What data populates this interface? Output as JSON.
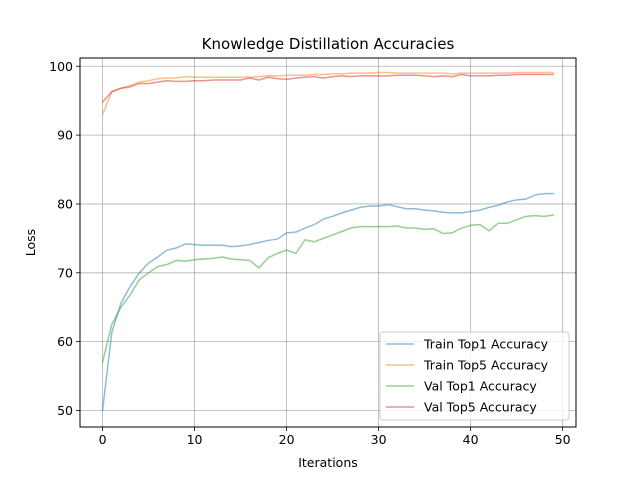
{
  "chart_data": {
    "type": "line",
    "title": "Knowledge Distillation Accuracies",
    "xlabel": "Iterations",
    "ylabel": "Loss",
    "xlim": [
      -2.45,
      51.45
    ],
    "ylim": [
      47.6,
      101.2
    ],
    "xticks": [
      0,
      10,
      20,
      30,
      40,
      50
    ],
    "yticks": [
      50,
      60,
      70,
      80,
      90,
      100
    ],
    "grid": true,
    "legend_position": "lower right",
    "x": [
      0,
      1,
      2,
      3,
      4,
      5,
      6,
      7,
      8,
      9,
      10,
      11,
      12,
      13,
      14,
      15,
      16,
      17,
      18,
      19,
      20,
      21,
      22,
      23,
      24,
      25,
      26,
      27,
      28,
      29,
      30,
      31,
      32,
      33,
      34,
      35,
      36,
      37,
      38,
      39,
      40,
      41,
      42,
      43,
      44,
      45,
      46,
      47,
      48,
      49
    ],
    "series": [
      {
        "name": "Train Top1 Accuracy",
        "color": "#1f77b4",
        "values": [
          50.0,
          61.3,
          65.6,
          68.0,
          70.0,
          71.4,
          72.3,
          73.3,
          73.6,
          74.2,
          74.1,
          74.0,
          74.0,
          74.0,
          73.8,
          73.9,
          74.1,
          74.4,
          74.7,
          74.9,
          75.8,
          75.9,
          76.5,
          77.0,
          77.8,
          78.2,
          78.7,
          79.1,
          79.5,
          79.7,
          79.7,
          79.9,
          79.6,
          79.3,
          79.3,
          79.1,
          79.0,
          78.8,
          78.7,
          78.7,
          78.9,
          79.1,
          79.5,
          79.8,
          80.3,
          80.6,
          80.7,
          81.3,
          81.5,
          81.5
        ]
      },
      {
        "name": "Train Top5 Accuracy",
        "color": "#ff7f0e",
        "values": [
          93.0,
          96.3,
          96.8,
          97.2,
          97.7,
          97.9,
          98.2,
          98.3,
          98.3,
          98.5,
          98.4,
          98.4,
          98.4,
          98.4,
          98.4,
          98.4,
          98.4,
          98.5,
          98.6,
          98.6,
          98.7,
          98.7,
          98.7,
          98.8,
          98.8,
          98.9,
          98.9,
          99.0,
          99.0,
          99.0,
          99.1,
          99.1,
          99.0,
          99.0,
          99.0,
          99.0,
          99.0,
          99.0,
          98.9,
          99.0,
          99.0,
          99.0,
          99.0,
          99.0,
          99.0,
          99.1,
          99.1,
          99.1,
          99.1,
          99.1
        ]
      },
      {
        "name": "Val Top1 Accuracy",
        "color": "#2ca02c",
        "values": [
          57.0,
          62.5,
          65.0,
          66.8,
          69.0,
          70.0,
          70.9,
          71.2,
          71.8,
          71.7,
          71.9,
          72.0,
          72.1,
          72.3,
          72.0,
          71.9,
          71.8,
          70.7,
          72.2,
          72.8,
          73.3,
          72.8,
          74.8,
          74.5,
          75.0,
          75.5,
          76.0,
          76.5,
          76.7,
          76.7,
          76.7,
          76.7,
          76.8,
          76.5,
          76.5,
          76.3,
          76.4,
          75.7,
          75.8,
          76.5,
          76.9,
          77.0,
          76.1,
          77.2,
          77.2,
          77.7,
          78.2,
          78.3,
          78.2,
          78.4
        ]
      },
      {
        "name": "Val Top5 Accuracy",
        "color": "#d62728",
        "values": [
          94.8,
          96.3,
          96.8,
          97.0,
          97.5,
          97.5,
          97.7,
          97.9,
          97.8,
          97.8,
          97.9,
          97.9,
          98.0,
          98.0,
          98.0,
          98.0,
          98.3,
          98.0,
          98.4,
          98.2,
          98.1,
          98.3,
          98.4,
          98.5,
          98.3,
          98.5,
          98.6,
          98.5,
          98.6,
          98.6,
          98.6,
          98.6,
          98.7,
          98.7,
          98.7,
          98.6,
          98.5,
          98.6,
          98.5,
          98.8,
          98.6,
          98.6,
          98.6,
          98.7,
          98.7,
          98.8,
          98.8,
          98.8,
          98.8,
          98.8
        ]
      }
    ]
  }
}
